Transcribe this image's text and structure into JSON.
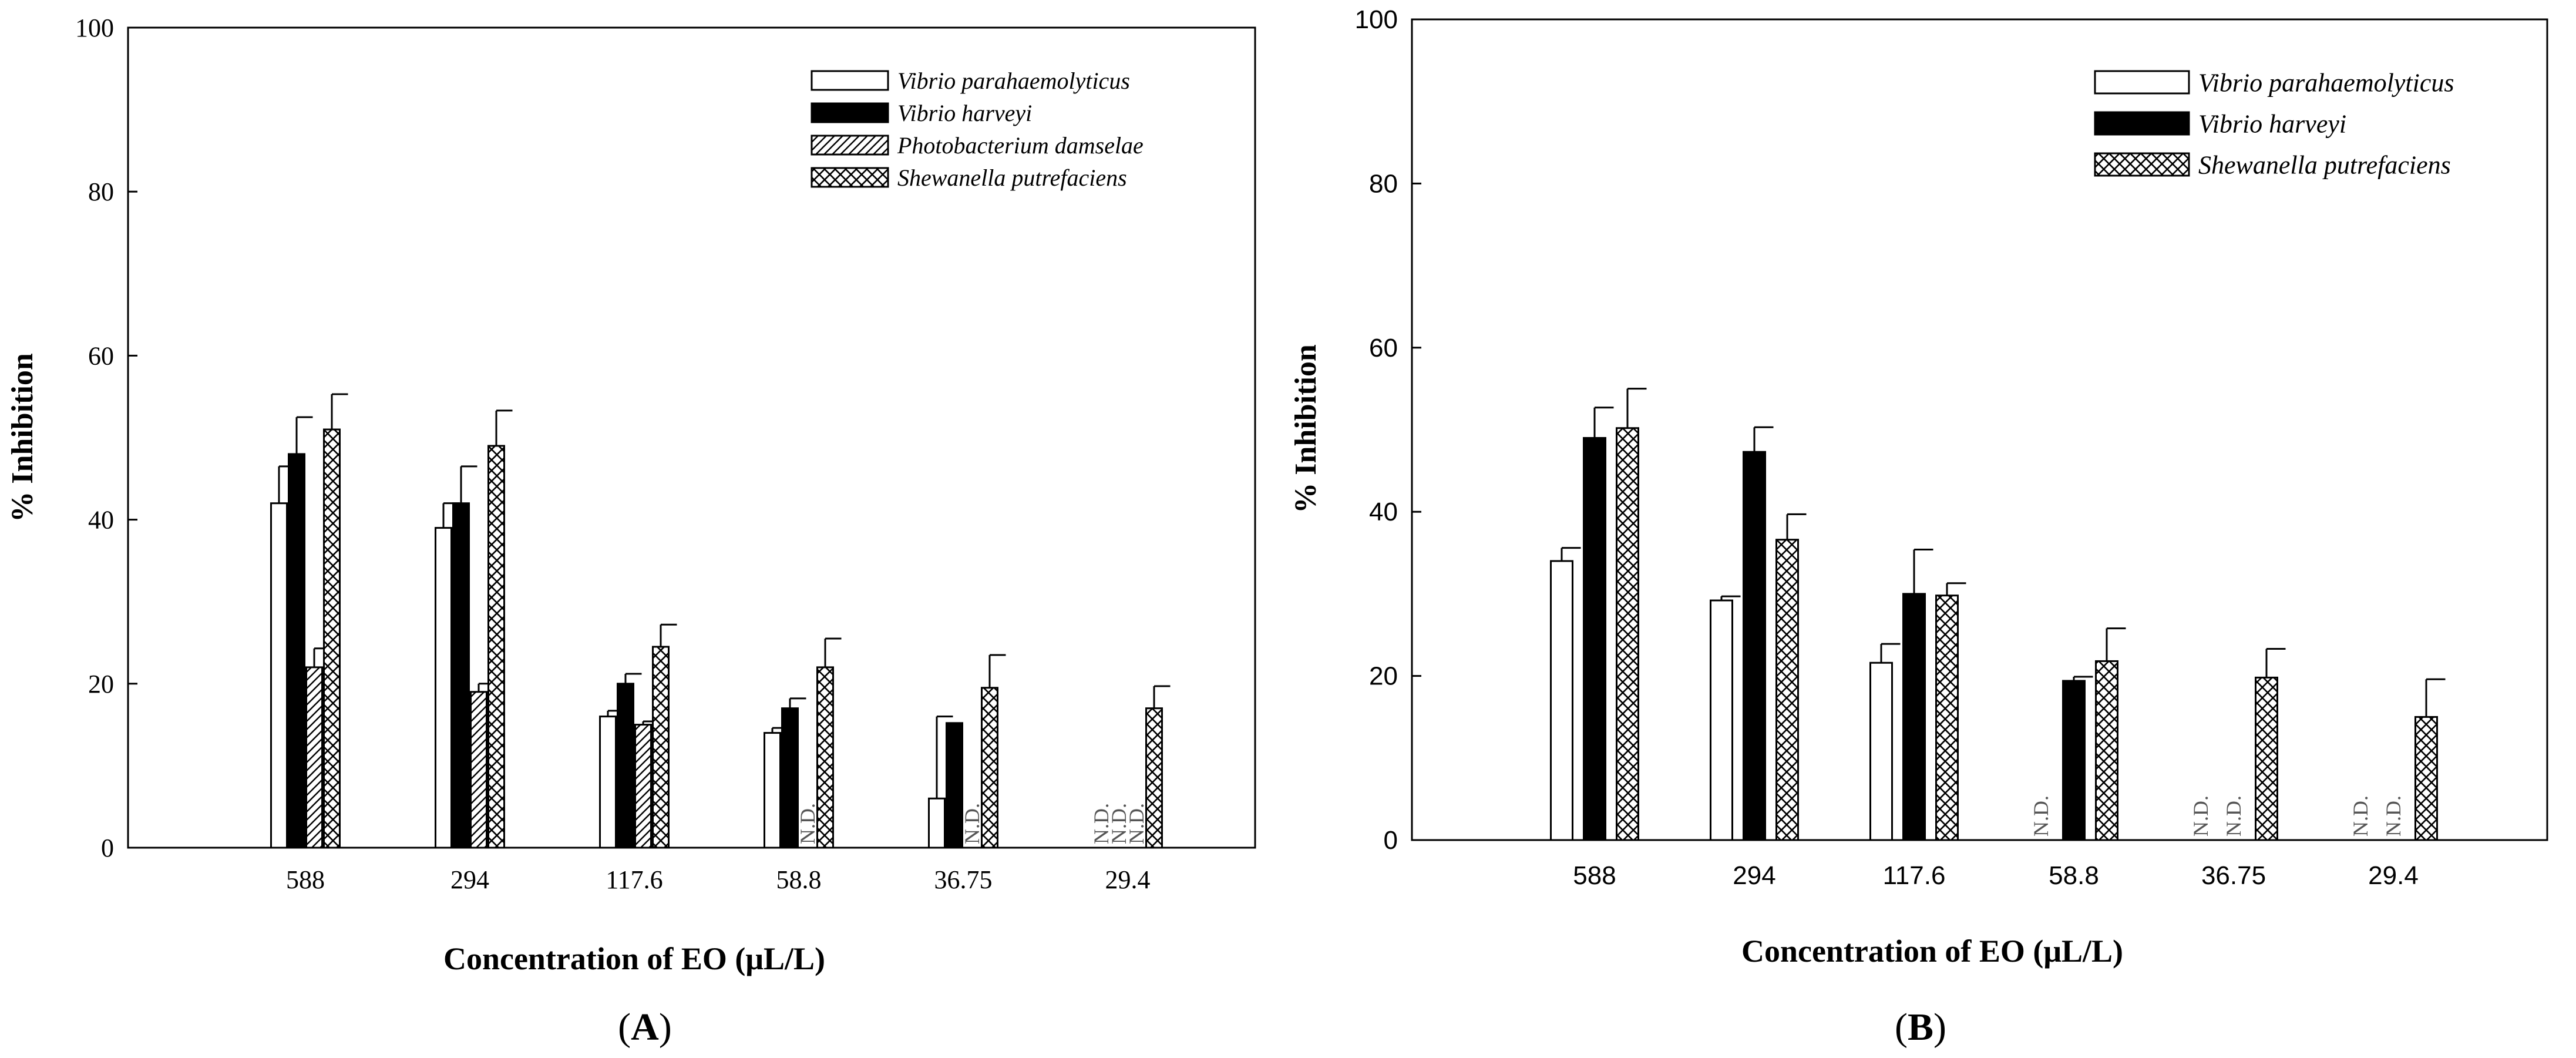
{
  "chart_data": [
    {
      "type": "bar",
      "panel_label": "(A)",
      "panel_letter": "A",
      "title": "",
      "xlabel": "Concentration of EO (μL/L)",
      "ylabel": "% Inhibition",
      "ylim": [
        0,
        100
      ],
      "yticks": [
        0,
        20,
        40,
        60,
        80,
        100
      ],
      "categories": [
        "588",
        "294",
        "117.6",
        "58.8",
        "36.75",
        "29.4"
      ],
      "legend_position": "top-right",
      "series": [
        {
          "name": "Vibrio parahaemolyticus",
          "pattern": "open",
          "values": [
            42,
            39,
            16,
            14,
            6,
            null
          ],
          "errors": [
            4.5,
            3,
            0.7,
            0.6,
            10,
            null
          ]
        },
        {
          "name": "Vibrio harveyi",
          "pattern": "solid",
          "values": [
            48,
            42,
            20,
            17,
            15.2,
            null
          ],
          "errors": [
            4.5,
            4.5,
            1.2,
            1.2,
            0,
            null
          ]
        },
        {
          "name": "Photobacterium damselae",
          "pattern": "hatch",
          "values": [
            22,
            19,
            15,
            null,
            null,
            null
          ],
          "errors": [
            2.3,
            1,
            0.4,
            null,
            null,
            null
          ]
        },
        {
          "name": "Shewanella putrefaciens",
          "pattern": "crosshatch",
          "values": [
            51,
            49,
            24.5,
            22,
            19.5,
            17
          ],
          "errors": [
            4.3,
            4.3,
            2.7,
            3.5,
            4,
            2.7
          ]
        }
      ],
      "nd_label": "N.D."
    },
    {
      "type": "bar",
      "panel_label": "(B)",
      "panel_letter": "B",
      "title": "",
      "xlabel": "Concentration of EO (μL/L)",
      "ylabel": "% Inhibition",
      "ylim": [
        0,
        100
      ],
      "yticks": [
        0,
        20,
        40,
        60,
        80,
        100
      ],
      "categories": [
        "588",
        "294",
        "117.6",
        "58.8",
        "36.75",
        "29.4"
      ],
      "legend_position": "top-right",
      "series": [
        {
          "name": "Vibrio parahaemolyticus",
          "pattern": "open",
          "values": [
            34,
            29.2,
            21.6,
            null,
            null,
            null
          ],
          "errors": [
            1.6,
            0.5,
            2.3,
            null,
            null,
            null
          ]
        },
        {
          "name": "Vibrio harveyi",
          "pattern": "solid",
          "values": [
            49,
            47.3,
            30,
            19.4,
            null,
            null
          ],
          "errors": [
            3.7,
            3,
            5.4,
            0.5,
            null,
            null
          ]
        },
        {
          "name": "Shewanella putrefaciens",
          "pattern": "crosshatch",
          "values": [
            50.2,
            36.6,
            29.8,
            21.8,
            19.8,
            15
          ],
          "errors": [
            4.8,
            3.1,
            1.5,
            4,
            3.5,
            4.6
          ]
        }
      ],
      "nd_label": "N.D."
    }
  ]
}
